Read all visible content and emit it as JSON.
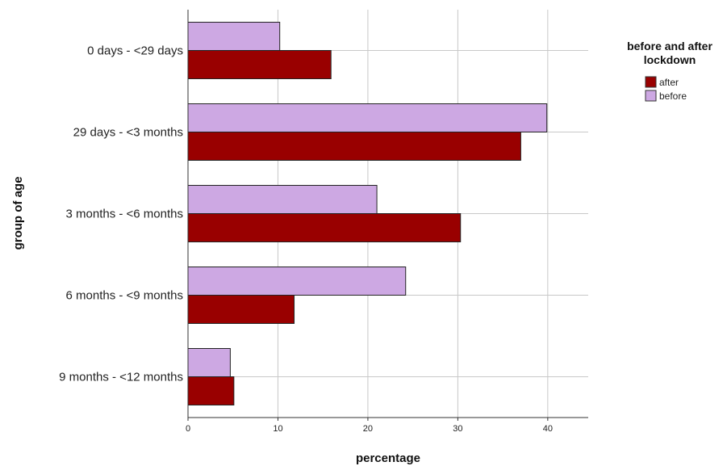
{
  "chart_data": {
    "type": "bar",
    "orientation": "horizontal",
    "categories": [
      "0 days - <29 days",
      "29 days - <3 months",
      "3 months - <6 months",
      "6 months - <9 months",
      "9 months - <12 months"
    ],
    "series": [
      {
        "name": "before",
        "color": "#cda8e3",
        "values": [
          10.2,
          39.9,
          21.0,
          24.2,
          4.7
        ]
      },
      {
        "name": "after",
        "color": "#990000",
        "values": [
          15.9,
          37.0,
          30.3,
          11.8,
          5.1
        ]
      }
    ],
    "xlabel": "percentage",
    "ylabel": "group of age",
    "xlim": [
      0,
      44.5
    ],
    "xticks": [
      0,
      10,
      20,
      30,
      40
    ],
    "grid": true,
    "legend": {
      "title_line1": "before and after",
      "title_line2": "lockdown",
      "placement": "right",
      "items": [
        {
          "label": "after",
          "color": "#990000"
        },
        {
          "label": "before",
          "color": "#cda8e3"
        }
      ]
    }
  }
}
